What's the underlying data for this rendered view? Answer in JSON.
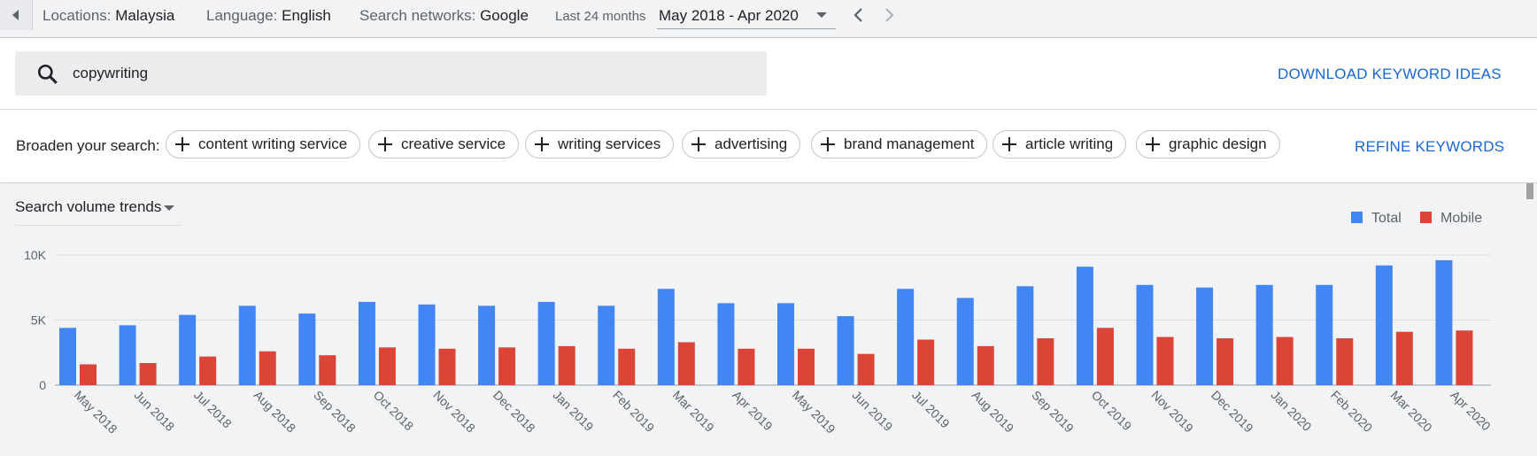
{
  "topbar": {
    "locations_label": "Locations:",
    "locations_value": "Malaysia",
    "language_label": "Language:",
    "language_value": "English",
    "networks_label": "Search networks:",
    "networks_value": "Google",
    "range_preset": "Last 24 months",
    "range_value": "May 2018 - Apr 2020"
  },
  "search": {
    "query": "copywriting",
    "download_label": "DOWNLOAD KEYWORD IDEAS"
  },
  "broaden": {
    "label": "Broaden your search:",
    "chips": [
      "content writing service",
      "creative service",
      "writing services",
      "advertising",
      "brand management",
      "article writing",
      "graphic design"
    ],
    "refine_label": "REFINE KEYWORDS"
  },
  "trends": {
    "selector_label": "Search volume trends"
  },
  "colors": {
    "accent_link": "#1967d2",
    "total": "#4285f4",
    "mobile": "#db4437"
  },
  "chart_data": {
    "type": "bar",
    "categories": [
      "May 2018",
      "Jun 2018",
      "Jul 2018",
      "Aug 2018",
      "Sep 2018",
      "Oct 2018",
      "Nov 2018",
      "Dec 2018",
      "Jan 2019",
      "Feb 2019",
      "Mar 2019",
      "Apr 2019",
      "May 2019",
      "Jun 2019",
      "Jul 2019",
      "Aug 2019",
      "Sep 2019",
      "Oct 2019",
      "Nov 2019",
      "Dec 2019",
      "Jan 2020",
      "Feb 2020",
      "Mar 2020",
      "Apr 2020"
    ],
    "series": [
      {
        "name": "Total",
        "values": [
          4400,
          4600,
          5400,
          6100,
          5500,
          6400,
          6200,
          6100,
          6400,
          6100,
          7400,
          6300,
          6300,
          5300,
          7400,
          6700,
          7600,
          9100,
          7700,
          7500,
          7700,
          7700,
          9200,
          9600
        ]
      },
      {
        "name": "Mobile",
        "values": [
          1600,
          1700,
          2200,
          2600,
          2300,
          2900,
          2800,
          2900,
          3000,
          2800,
          3300,
          2800,
          2800,
          2400,
          3500,
          3000,
          3600,
          4400,
          3700,
          3600,
          3700,
          3600,
          4100,
          4200
        ]
      }
    ],
    "yticks": [
      "0",
      "5K",
      "10K"
    ],
    "ylim": [
      0,
      10000
    ],
    "legend_position": "top-right",
    "grid": true
  }
}
